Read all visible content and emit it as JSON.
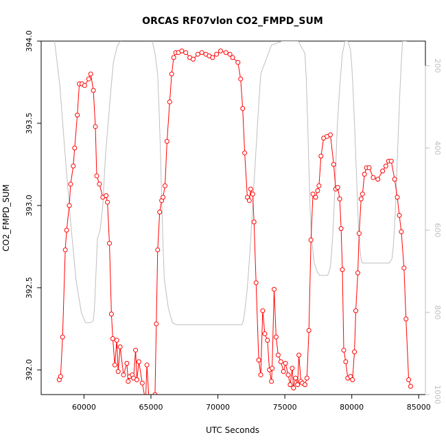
{
  "chart_data": {
    "type": "line",
    "title": "ORCAS RF07vlon CO2_FMPD_SUM",
    "xlabel": "UTC Seconds",
    "ylabel": "CO2_FMPD_SUM",
    "xlim": [
      56800,
      85500
    ],
    "ylim": [
      391.85,
      394.0
    ],
    "y2lim": [
      1000,
      140
    ],
    "y2_reversed": true,
    "grid": false,
    "x_ticks": [
      60000,
      65000,
      70000,
      75000,
      80000,
      85000
    ],
    "y_ticks": [
      392.0,
      392.5,
      393.0,
      393.5,
      394.0
    ],
    "y2_ticks": [
      200,
      400,
      600,
      800,
      1000
    ],
    "x_tick_labels": [
      "60000",
      "65000",
      "70000",
      "75000",
      "80000",
      "85000"
    ],
    "y_tick_labels": [
      "392.0",
      "392.5",
      "393.0",
      "393.5",
      "394.0"
    ],
    "y2_tick_labels": [
      "200",
      "400",
      "600",
      "800",
      "1000"
    ],
    "colors": {
      "co2": "#ff0000",
      "pressure": "#bebebe",
      "axis": "#000000"
    },
    "series": [
      {
        "role": "co2",
        "axis": "left",
        "marker": "circle",
        "x": [
          58150,
          58250,
          58400,
          58600,
          58700,
          58900,
          59000,
          59200,
          59300,
          59500,
          59650,
          59850,
          60050,
          60350,
          60500,
          60700,
          60850,
          60950,
          61150,
          61400,
          61650,
          61750,
          61900,
          62050,
          62150,
          62300,
          62450,
          62550,
          62700,
          62950,
          63200,
          63300,
          63400,
          63600,
          63700,
          63850,
          63950,
          64100,
          64350,
          64600,
          64700,
          64850,
          65300,
          65400,
          65500,
          65650,
          65800,
          65900,
          66050,
          66200,
          66400,
          66550,
          66700,
          66850,
          67050,
          67300,
          67600,
          67900,
          68150,
          68500,
          68800,
          69100,
          69350,
          69600,
          69900,
          70200,
          70600,
          70900,
          71100,
          71500,
          71700,
          71850,
          72000,
          72200,
          72350,
          72450,
          72600,
          72700,
          72850,
          73050,
          73200,
          73350,
          73500,
          73700,
          73850,
          74000,
          74050,
          74200,
          74350,
          74500,
          74700,
          74900,
          75050,
          75250,
          75400,
          75550,
          75650,
          75800,
          75950,
          76050,
          76200,
          76300,
          76500,
          76650,
          76800,
          76950,
          77100,
          77300,
          77450,
          77550,
          77700,
          77900,
          78150,
          78400,
          78650,
          78800,
          78950,
          79100,
          79200,
          79300,
          79400,
          79550,
          79700,
          79900,
          80050,
          80200,
          80300,
          80450,
          80550,
          80700,
          80800,
          80950,
          81100,
          81300,
          81600,
          81950,
          82300,
          82550,
          82750,
          82950,
          83200,
          83400,
          83550,
          83700,
          83900,
          84050,
          84250,
          84400
        ],
        "y": [
          391.94,
          391.96,
          392.2,
          392.73,
          392.85,
          393.0,
          393.13,
          393.24,
          393.35,
          393.55,
          393.74,
          393.74,
          393.73,
          393.77,
          393.8,
          393.7,
          393.48,
          393.18,
          393.13,
          393.05,
          393.06,
          393.02,
          392.77,
          392.34,
          392.19,
          392.03,
          392.18,
          391.99,
          392.14,
          391.97,
          392.04,
          391.93,
          391.96,
          391.97,
          391.95,
          392.12,
          391.94,
          392.05,
          391.92,
          391.81,
          392.03,
          391.82,
          391.85,
          392.28,
          392.73,
          392.96,
          393.03,
          393.05,
          393.12,
          393.39,
          393.63,
          393.8,
          393.9,
          393.93,
          393.93,
          393.94,
          393.93,
          393.9,
          393.89,
          393.92,
          393.93,
          393.92,
          393.91,
          393.9,
          393.92,
          393.94,
          393.93,
          393.92,
          393.9,
          393.87,
          393.77,
          393.59,
          393.32,
          393.05,
          393.03,
          393.1,
          393.07,
          392.9,
          392.53,
          392.06,
          391.97,
          392.36,
          392.22,
          392.18,
          392.0,
          391.93,
          392.01,
          392.49,
          392.2,
          392.09,
          392.05,
          391.99,
          392.04,
          391.97,
          391.91,
          392.01,
          391.89,
          391.95,
          391.91,
          392.09,
          391.93,
          391.92,
          391.91,
          391.95,
          392.24,
          392.79,
          393.07,
          393.05,
          393.09,
          393.12,
          393.3,
          393.41,
          393.42,
          393.43,
          393.25,
          393.1,
          393.11,
          393.04,
          392.86,
          392.61,
          392.12,
          392.05,
          391.95,
          391.96,
          391.94,
          392.11,
          392.36,
          392.59,
          392.83,
          393.04,
          393.07,
          393.19,
          393.23,
          393.23,
          393.17,
          393.16,
          393.21,
          393.24,
          393.27,
          393.27,
          393.16,
          393.05,
          392.94,
          392.84,
          392.62,
          392.31,
          391.94,
          391.9
        ]
      },
      {
        "role": "pressure",
        "axis": "right",
        "marker": "none",
        "x": [
          57800,
          58200,
          58600,
          59000,
          59400,
          59800,
          60100,
          60500,
          60700,
          60800,
          60900,
          61000,
          61200,
          61400,
          61500,
          61600,
          61800,
          62000,
          62200,
          62500,
          63000,
          63500,
          64000,
          64500,
          64800,
          65100,
          65300,
          65500,
          65600,
          65700,
          65800,
          65900,
          66000,
          66300,
          66600,
          66900,
          67000,
          67200,
          67500,
          68000,
          69000,
          70000,
          71000,
          71500,
          71800,
          71900,
          72000,
          72200,
          72400,
          72600,
          72800,
          73000,
          73200,
          74000,
          74800,
          75500,
          76000,
          76500,
          76600,
          76700,
          76800,
          76900,
          77000,
          77200,
          77400,
          77600,
          77800,
          78000,
          78200,
          78400,
          78500,
          78600,
          78700,
          78800,
          78900,
          79100,
          79300,
          79500,
          79700,
          79900,
          80000,
          80100,
          80200,
          80300,
          80400,
          80500,
          80600,
          80700,
          80800,
          80900,
          81000,
          81100,
          81200,
          81400,
          81800,
          82200,
          82600,
          82800,
          83000,
          83100,
          83200,
          83300,
          83400,
          83500,
          83600,
          83700,
          83800,
          84000,
          84100
        ],
        "y": [
          140,
          250,
          420,
          580,
          720,
          800,
          825,
          825,
          820,
          780,
          700,
          620,
          600,
          540,
          480,
          420,
          340,
          260,
          190,
          150,
          130,
          130,
          130,
          130,
          130,
          140,
          170,
          220,
          300,
          400,
          520,
          640,
          720,
          790,
          825,
          830,
          830,
          830,
          830,
          830,
          830,
          830,
          830,
          830,
          830,
          820,
          800,
          740,
          650,
          540,
          430,
          320,
          220,
          150,
          140,
          140,
          140,
          170,
          230,
          330,
          450,
          560,
          620,
          680,
          700,
          710,
          710,
          710,
          710,
          690,
          650,
          600,
          530,
          450,
          360,
          250,
          170,
          140,
          140,
          160,
          200,
          260,
          340,
          420,
          510,
          590,
          640,
          670,
          680,
          680,
          680,
          680,
          680,
          680,
          680,
          680,
          680,
          680,
          670,
          640,
          590,
          520,
          430,
          340,
          260,
          190,
          140,
          140,
          140
        ]
      }
    ]
  }
}
